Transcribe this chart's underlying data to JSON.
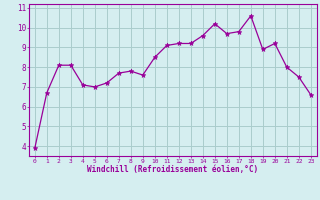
{
  "x": [
    0,
    1,
    2,
    3,
    4,
    5,
    6,
    7,
    8,
    9,
    10,
    11,
    12,
    13,
    14,
    15,
    16,
    17,
    18,
    19,
    20,
    21,
    22,
    23
  ],
  "y": [
    3.9,
    6.7,
    8.1,
    8.1,
    7.1,
    7.0,
    7.2,
    7.7,
    7.8,
    7.6,
    8.5,
    9.1,
    9.2,
    9.2,
    9.6,
    10.2,
    9.7,
    9.8,
    10.6,
    8.9,
    9.2,
    8.0,
    7.5,
    6.6
  ],
  "line_color": "#990099",
  "marker": "*",
  "marker_size": 3.5,
  "bg_color": "#d5eef0",
  "grid_color": "#aacccc",
  "xlabel": "Windchill (Refroidissement éolien,°C)",
  "xlabel_color": "#990099",
  "tick_color": "#990099",
  "ylim": [
    3.5,
    11.2
  ],
  "xlim": [
    -0.5,
    23.5
  ],
  "yticks": [
    4,
    5,
    6,
    7,
    8,
    9,
    10,
    11
  ],
  "xticks": [
    0,
    1,
    2,
    3,
    4,
    5,
    6,
    7,
    8,
    9,
    10,
    11,
    12,
    13,
    14,
    15,
    16,
    17,
    18,
    19,
    20,
    21,
    22,
    23
  ]
}
